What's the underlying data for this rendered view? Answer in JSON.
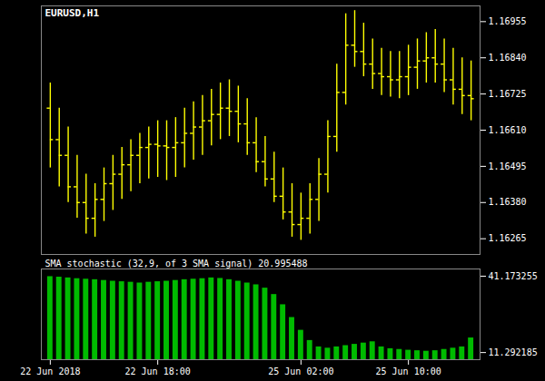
{
  "chart_data": [
    {
      "type": "ohlc",
      "title": "EURUSD,H1",
      "categories": [
        "22 Jun 2018",
        null,
        null,
        null,
        null,
        null,
        null,
        null,
        null,
        null,
        null,
        null,
        "22 Jun 18:00",
        null,
        null,
        null,
        null,
        null,
        null,
        null,
        null,
        null,
        null,
        null,
        null,
        null,
        null,
        null,
        "25 Jun 02:00",
        null,
        null,
        null,
        null,
        null,
        null,
        null,
        null,
        null,
        null,
        null,
        "25 Jun 10:00",
        null,
        null,
        null,
        null,
        null,
        null,
        null
      ],
      "open": [
        1.1668,
        1.1658,
        1.1653,
        1.1643,
        1.1638,
        1.1633,
        1.1639,
        1.1644,
        1.1647,
        1.165,
        1.1653,
        1.16555,
        1.16565,
        1.1656,
        1.16555,
        1.1657,
        1.166,
        1.1662,
        1.1664,
        1.1666,
        1.1668,
        1.1667,
        1.1663,
        1.1657,
        1.1651,
        1.16455,
        1.164,
        1.1635,
        1.1631,
        1.1633,
        1.1639,
        1.1647,
        1.1659,
        1.1673,
        1.1688,
        1.1686,
        1.1682,
        1.1679,
        1.1678,
        1.1677,
        1.1678,
        1.1681,
        1.1683,
        1.1684,
        1.1682,
        1.1677,
        1.1674,
        1.1672
      ],
      "high": [
        1.1676,
        1.1668,
        1.1662,
        1.1653,
        1.1647,
        1.1644,
        1.1649,
        1.1653,
        1.16555,
        1.1658,
        1.166,
        1.1662,
        1.1664,
        1.1664,
        1.1665,
        1.1668,
        1.167,
        1.1672,
        1.1674,
        1.1676,
        1.1677,
        1.1675,
        1.1671,
        1.1665,
        1.1659,
        1.1654,
        1.1649,
        1.1644,
        1.1641,
        1.1644,
        1.1652,
        1.1664,
        1.1682,
        1.1698,
        1.1699,
        1.1695,
        1.169,
        1.1687,
        1.1686,
        1.1686,
        1.1688,
        1.169,
        1.1692,
        1.1693,
        1.169,
        1.1687,
        1.1684,
        1.1683
      ],
      "low": [
        1.1649,
        1.1643,
        1.1638,
        1.1633,
        1.1628,
        1.1627,
        1.1632,
        1.16355,
        1.1639,
        1.16415,
        1.1644,
        1.16455,
        1.1646,
        1.1645,
        1.1646,
        1.1649,
        1.16515,
        1.1653,
        1.1656,
        1.1658,
        1.1659,
        1.1657,
        1.1653,
        1.16475,
        1.1643,
        1.1638,
        1.16325,
        1.1627,
        1.1626,
        1.1628,
        1.1632,
        1.1641,
        1.1654,
        1.1669,
        1.1681,
        1.1678,
        1.1674,
        1.1672,
        1.16715,
        1.1671,
        1.1672,
        1.1674,
        1.1676,
        1.1676,
        1.1673,
        1.1669,
        1.1666,
        1.1664
      ],
      "close": [
        1.1658,
        1.1653,
        1.1643,
        1.1638,
        1.1633,
        1.1639,
        1.1644,
        1.1647,
        1.165,
        1.1653,
        1.16555,
        1.16565,
        1.1656,
        1.16555,
        1.1657,
        1.166,
        1.1662,
        1.1664,
        1.1666,
        1.1668,
        1.1667,
        1.1663,
        1.1657,
        1.1651,
        1.16455,
        1.164,
        1.1635,
        1.1631,
        1.1633,
        1.1639,
        1.1647,
        1.1659,
        1.1673,
        1.1688,
        1.1686,
        1.1682,
        1.1679,
        1.1678,
        1.1677,
        1.1678,
        1.1681,
        1.1683,
        1.1684,
        1.1682,
        1.1677,
        1.1674,
        1.1672,
        1.1671
      ],
      "color": "#ffff00",
      "ylim": [
        1.16215,
        1.17005
      ],
      "yticks": [
        1.16265,
        {
          "value": 1.1638,
          "label": "1.16380"
        },
        1.16495,
        {
          "value": 1.1661,
          "label": "1.16610"
        },
        1.16725,
        {
          "value": 1.1684,
          "label": "1.16840"
        },
        1.16955
      ],
      "grid": false,
      "tick_labels": "y"
    },
    {
      "type": "bar",
      "title": "SMA stochastic (32,9, of 3 SMA signal) 20.995488",
      "categories": [
        "22 Jun 2018",
        null,
        null,
        null,
        null,
        null,
        null,
        null,
        null,
        null,
        null,
        null,
        "22 Jun 18:00",
        null,
        null,
        null,
        null,
        null,
        null,
        null,
        null,
        null,
        null,
        null,
        null,
        null,
        null,
        null,
        "25 Jun 02:00",
        null,
        null,
        null,
        null,
        null,
        null,
        null,
        null,
        null,
        null,
        null,
        "25 Jun 10:00",
        null,
        null,
        null,
        null,
        null,
        null,
        null
      ],
      "values": [
        41.0,
        40.8,
        40.5,
        40.2,
        40.0,
        39.8,
        39.5,
        39.2,
        39.0,
        38.8,
        38.5,
        38.8,
        39.0,
        39.2,
        39.5,
        39.8,
        40.0,
        40.2,
        40.5,
        40.3,
        39.8,
        39.2,
        38.5,
        37.8,
        36.5,
        34.0,
        30.0,
        25.0,
        20.0,
        16.0,
        13.5,
        13.0,
        13.5,
        14.0,
        14.5,
        15.0,
        15.5,
        13.5,
        12.8,
        12.5,
        12.2,
        12.0,
        11.8,
        12.0,
        12.5,
        13.0,
        13.5,
        17.0
      ],
      "color": "#00bb00",
      "ylim": [
        8.5,
        44.0
      ],
      "yticks": [
        41.173255,
        11.292185
      ],
      "grid": false
    }
  ]
}
